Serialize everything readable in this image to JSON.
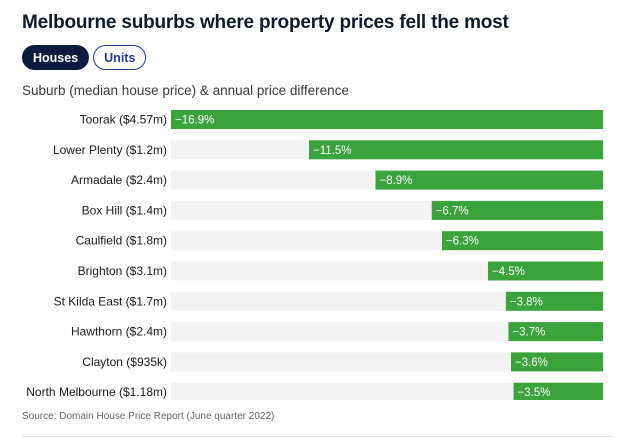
{
  "title": "Melbourne suburbs where property prices fell the most",
  "tabs": [
    {
      "label": "Houses",
      "active": true
    },
    {
      "label": "Units",
      "active": false
    }
  ],
  "subtitle": "Suburb (median house price) & annual price difference",
  "source": "Source: Domain House Price Report (June quarter 2022)",
  "colors": {
    "bar": "#3ba33b",
    "track": "#f3f3f3",
    "accent": "#0d1b3e"
  },
  "chart_data": {
    "type": "bar",
    "orientation": "horizontal",
    "categories": [
      "Toorak ($4.57m)",
      "Lower Plenty ($1.2m)",
      "Armadale ($2.4m)",
      "Box Hill ($1.4m)",
      "Caulfield ($1.8m)",
      "Brighton ($3.1m)",
      "St Kilda East ($1.7m)",
      "Hawthorn ($2.4m)",
      "Clayton ($935k)",
      "North Melbourne ($1.18m)"
    ],
    "values": [
      -16.9,
      -11.5,
      -8.9,
      -6.7,
      -6.3,
      -4.5,
      -3.8,
      -3.7,
      -3.6,
      -3.5
    ],
    "data_labels": [
      "−16.9%",
      "−11.5%",
      "−8.9%",
      "−6.7%",
      "−6.3%",
      "−4.5%",
      "−3.8%",
      "−3.7%",
      "−3.6%",
      "−3.5%"
    ],
    "xlim": [
      -16.9,
      0
    ],
    "grid": false,
    "legend": "none"
  }
}
